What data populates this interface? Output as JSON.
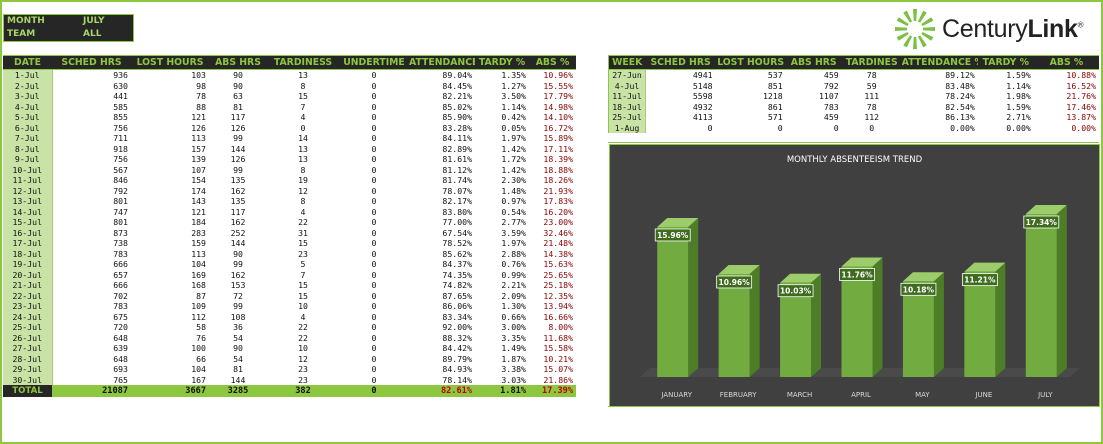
{
  "filter": {
    "month_label": "MONTH",
    "month_value": "JULY",
    "team_label": "TEAM",
    "team_value": "ALL"
  },
  "logo": {
    "text_a": "Century",
    "text_b": "Link",
    "mark": "®"
  },
  "daily": {
    "headers": [
      "DATE",
      "SCHED HRS",
      "LOST HOURS",
      "ABS HRS",
      "TARDINESS",
      "UNDERTIME",
      "ATTENDANCE",
      "TARDY %",
      "ABS %"
    ],
    "rows": [
      [
        "1-Jul",
        "936",
        "103",
        "90",
        "13",
        "0",
        "89.04%",
        "1.35%",
        "10.96%"
      ],
      [
        "2-Jul",
        "630",
        "98",
        "90",
        "8",
        "0",
        "84.45%",
        "1.27%",
        "15.55%"
      ],
      [
        "3-Jul",
        "441",
        "78",
        "63",
        "15",
        "0",
        "82.21%",
        "3.50%",
        "17.79%"
      ],
      [
        "4-Jul",
        "585",
        "88",
        "81",
        "7",
        "0",
        "85.02%",
        "1.14%",
        "14.98%"
      ],
      [
        "5-Jul",
        "855",
        "121",
        "117",
        "4",
        "0",
        "85.90%",
        "0.42%",
        "14.10%"
      ],
      [
        "6-Jul",
        "756",
        "126",
        "126",
        "0",
        "0",
        "83.28%",
        "0.05%",
        "16.72%"
      ],
      [
        "7-Jul",
        "711",
        "113",
        "99",
        "14",
        "0",
        "84.11%",
        "1.97%",
        "15.89%"
      ],
      [
        "8-Jul",
        "918",
        "157",
        "144",
        "13",
        "0",
        "82.89%",
        "1.42%",
        "17.11%"
      ],
      [
        "9-Jul",
        "756",
        "139",
        "126",
        "13",
        "0",
        "81.61%",
        "1.72%",
        "18.39%"
      ],
      [
        "10-Jul",
        "567",
        "107",
        "99",
        "8",
        "0",
        "81.12%",
        "1.42%",
        "18.88%"
      ],
      [
        "11-Jul",
        "846",
        "154",
        "135",
        "19",
        "0",
        "81.74%",
        "2.30%",
        "18.26%"
      ],
      [
        "12-Jul",
        "792",
        "174",
        "162",
        "12",
        "0",
        "78.07%",
        "1.48%",
        "21.93%"
      ],
      [
        "13-Jul",
        "801",
        "143",
        "135",
        "8",
        "0",
        "82.17%",
        "0.97%",
        "17.83%"
      ],
      [
        "14-Jul",
        "747",
        "121",
        "117",
        "4",
        "0",
        "83.80%",
        "0.54%",
        "16.20%"
      ],
      [
        "15-Jul",
        "801",
        "184",
        "162",
        "22",
        "0",
        "77.00%",
        "2.77%",
        "23.00%"
      ],
      [
        "16-Jul",
        "873",
        "283",
        "252",
        "31",
        "0",
        "67.54%",
        "3.59%",
        "32.46%"
      ],
      [
        "17-Jul",
        "738",
        "159",
        "144",
        "15",
        "0",
        "78.52%",
        "1.97%",
        "21.48%"
      ],
      [
        "18-Jul",
        "783",
        "113",
        "90",
        "23",
        "0",
        "85.62%",
        "2.88%",
        "14.38%"
      ],
      [
        "19-Jul",
        "666",
        "104",
        "99",
        "5",
        "0",
        "84.37%",
        "0.76%",
        "15.63%"
      ],
      [
        "20-Jul",
        "657",
        "169",
        "162",
        "7",
        "0",
        "74.35%",
        "0.99%",
        "25.65%"
      ],
      [
        "21-Jul",
        "666",
        "168",
        "153",
        "15",
        "0",
        "74.82%",
        "2.21%",
        "25.18%"
      ],
      [
        "22-Jul",
        "702",
        "87",
        "72",
        "15",
        "0",
        "87.65%",
        "2.09%",
        "12.35%"
      ],
      [
        "23-Jul",
        "783",
        "109",
        "99",
        "10",
        "0",
        "86.06%",
        "1.30%",
        "13.94%"
      ],
      [
        "24-Jul",
        "675",
        "112",
        "108",
        "4",
        "0",
        "83.34%",
        "0.66%",
        "16.66%"
      ],
      [
        "25-Jul",
        "720",
        "58",
        "36",
        "22",
        "0",
        "92.00%",
        "3.00%",
        "8.00%"
      ],
      [
        "26-Jul",
        "648",
        "76",
        "54",
        "22",
        "0",
        "88.32%",
        "3.35%",
        "11.68%"
      ],
      [
        "27-Jul",
        "639",
        "100",
        "90",
        "10",
        "0",
        "84.42%",
        "1.49%",
        "15.58%"
      ],
      [
        "28-Jul",
        "648",
        "66",
        "54",
        "12",
        "0",
        "89.79%",
        "1.87%",
        "10.21%"
      ],
      [
        "29-Jul",
        "693",
        "104",
        "81",
        "23",
        "0",
        "84.93%",
        "3.38%",
        "15.07%"
      ],
      [
        "30-Jul",
        "765",
        "167",
        "144",
        "23",
        "0",
        "78.14%",
        "3.03%",
        "21.86%"
      ]
    ],
    "total": [
      "TOTAL",
      "21087",
      "3667",
      "3285",
      "382",
      "0",
      "82.61%",
      "1.81%",
      "17.39%"
    ]
  },
  "weekly": {
    "headers": [
      "WEEK",
      "SCHED HRS",
      "LOST HOURS",
      "ABS HRS",
      "TARDINES",
      "ATTENDANCE %",
      "TARDY %",
      "ABS %"
    ],
    "rows": [
      [
        "27-Jun",
        "4941",
        "537",
        "459",
        "78",
        "89.12%",
        "1.59%",
        "10.88%"
      ],
      [
        "4-Jul",
        "5148",
        "851",
        "792",
        "59",
        "83.48%",
        "1.14%",
        "16.52%"
      ],
      [
        "11-Jul",
        "5598",
        "1218",
        "1107",
        "111",
        "78.24%",
        "1.98%",
        "21.76%"
      ],
      [
        "18-Jul",
        "4932",
        "861",
        "783",
        "78",
        "82.54%",
        "1.59%",
        "17.46%"
      ],
      [
        "25-Jul",
        "4113",
        "571",
        "459",
        "112",
        "86.13%",
        "2.71%",
        "13.87%"
      ],
      [
        "1-Aug",
        "0",
        "0",
        "0",
        "0",
        "0.00%",
        "0.00%",
        "0.00%"
      ]
    ]
  },
  "chart_data": {
    "type": "bar",
    "title": "MONTHLY ABSENTEEISM TREND",
    "categories": [
      "JANUARY",
      "FEBRUARY",
      "MARCH",
      "APRIL",
      "MAY",
      "JUNE",
      "JULY"
    ],
    "values": [
      15.96,
      10.96,
      10.03,
      11.76,
      10.18,
      11.21,
      17.34
    ],
    "labels": [
      "15.96%",
      "10.96%",
      "10.03%",
      "11.76%",
      "10.18%",
      "11.21%",
      "17.34%"
    ],
    "ylim": [
      0,
      20
    ],
    "colors": {
      "bar": "#72ab3f",
      "bar_side": "#4d7d27",
      "bar_top": "#9ccd6a",
      "bg": "#404040",
      "text": "#ffffff"
    }
  }
}
